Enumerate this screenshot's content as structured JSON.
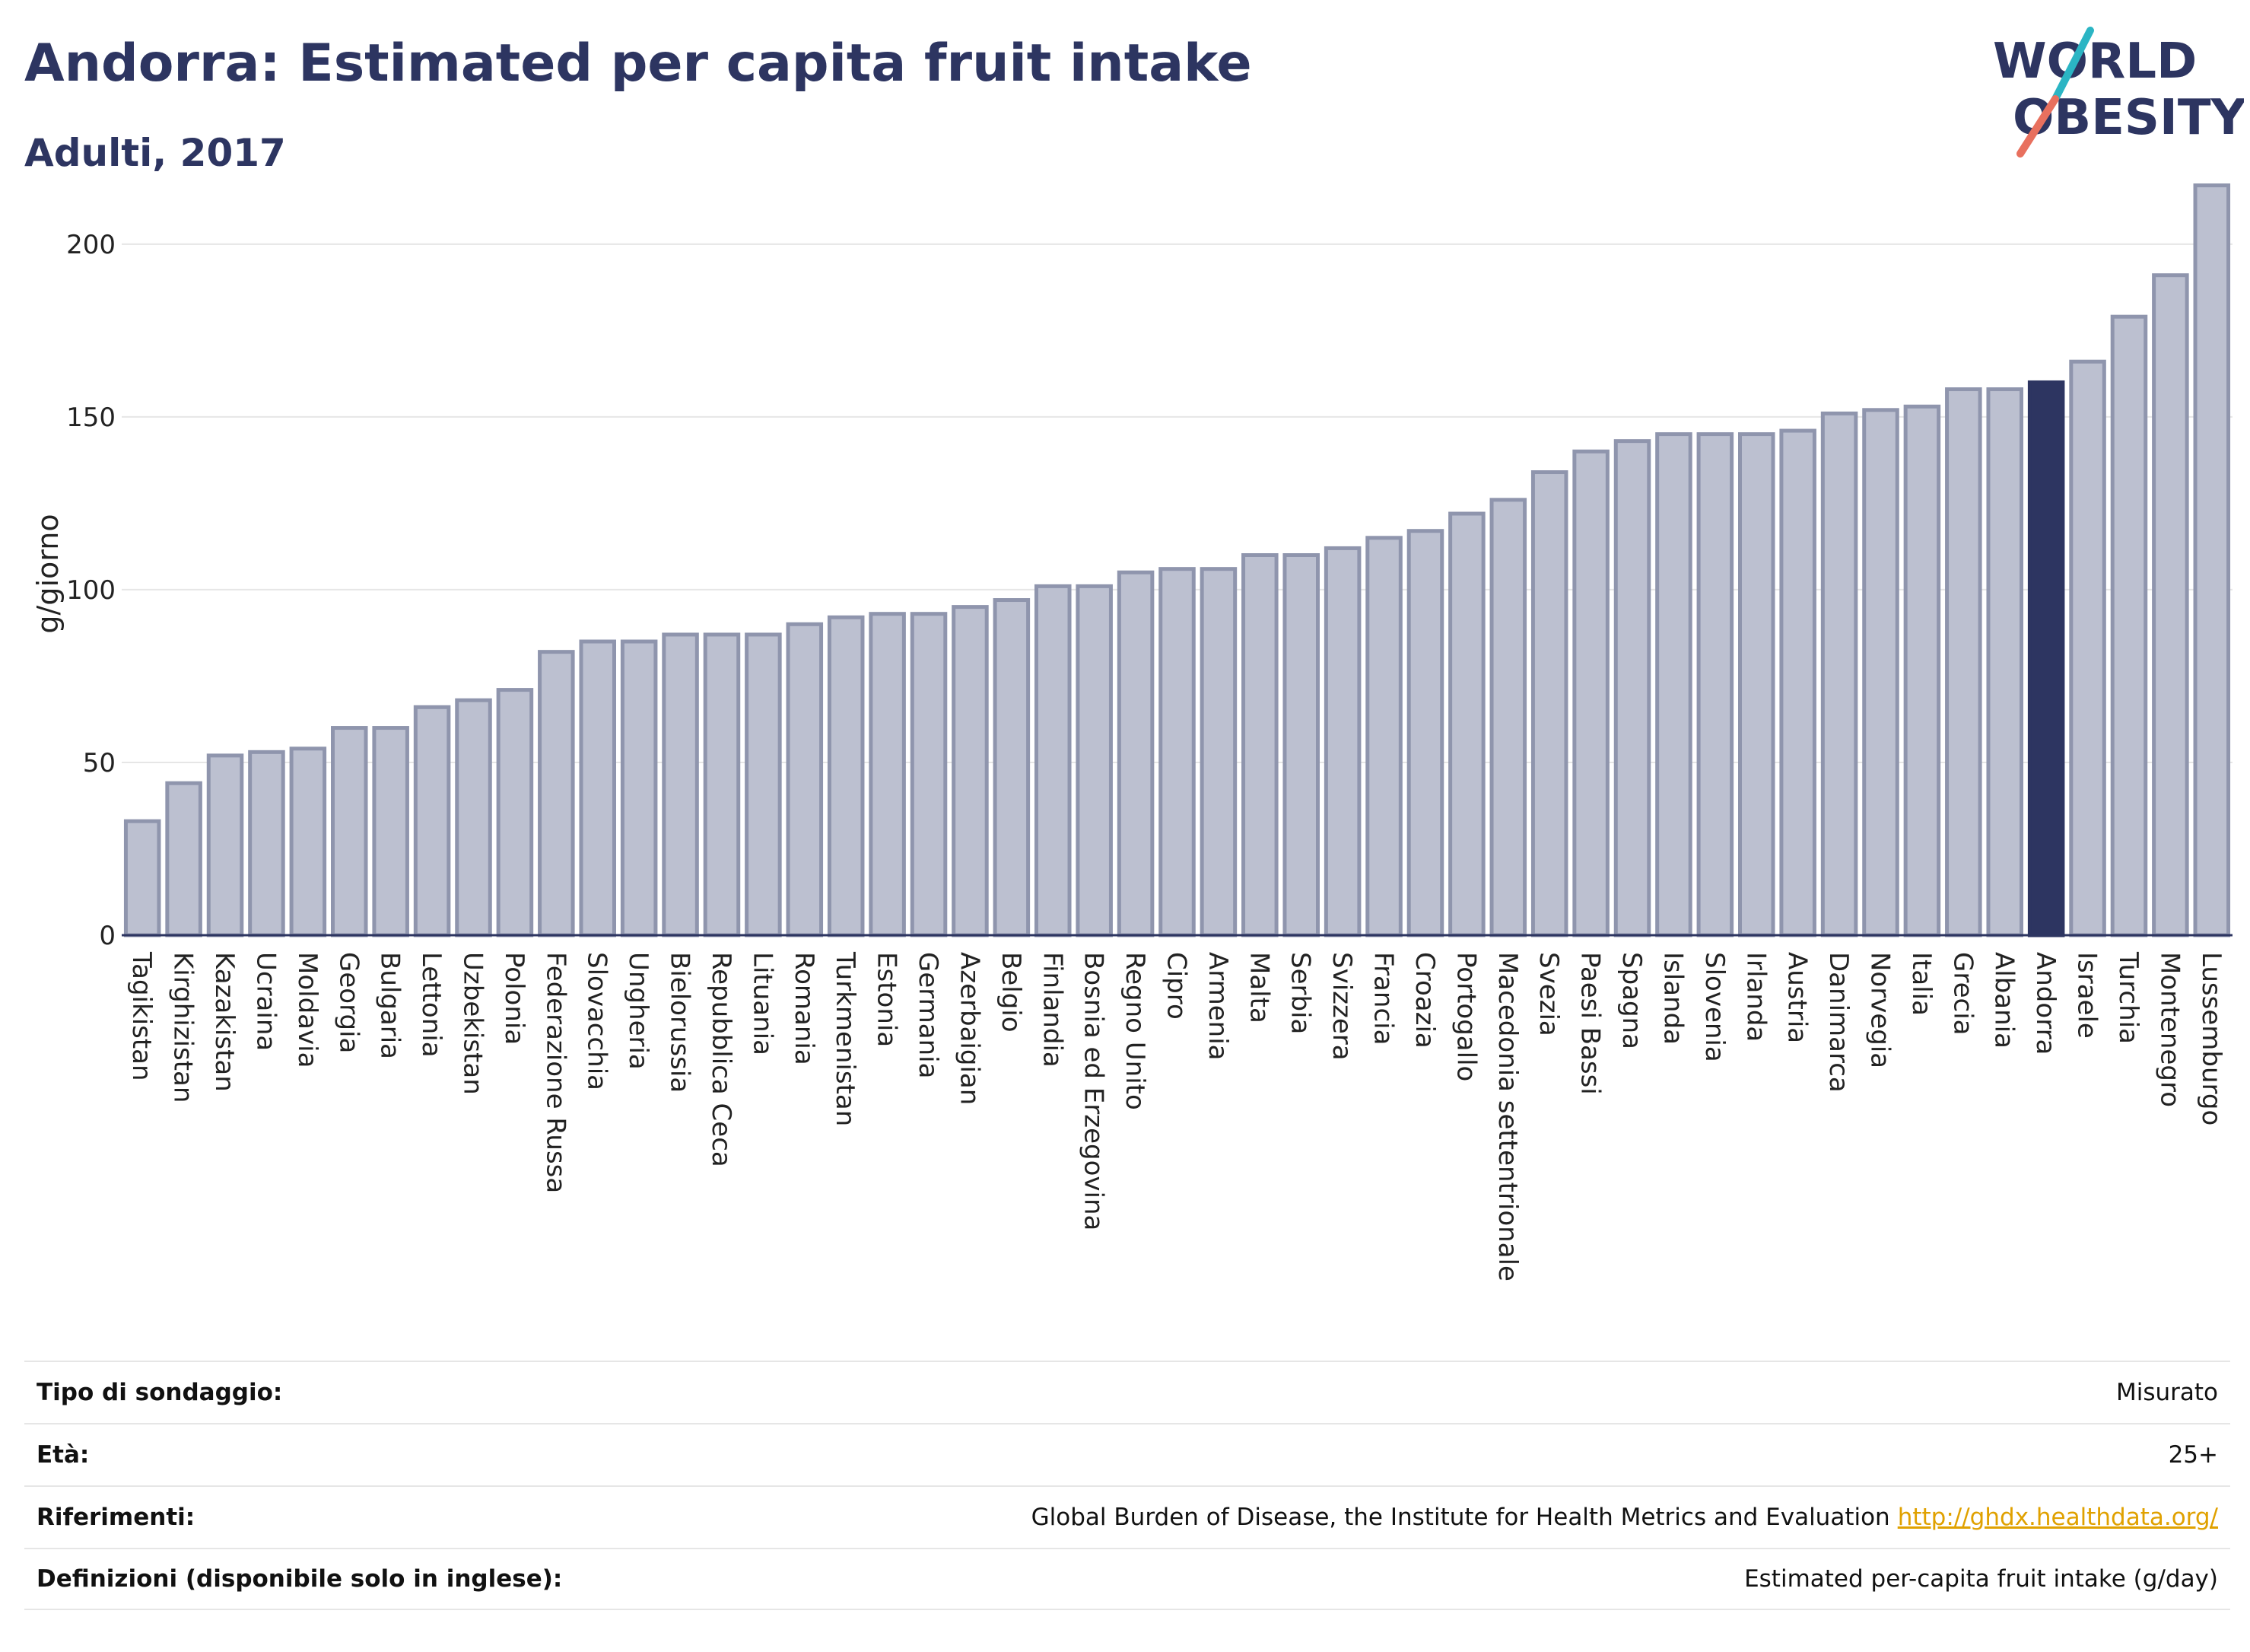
{
  "header": {
    "title": "Andorra: Estimated per capita fruit intake",
    "subtitle": "Adulti, 2017"
  },
  "logo": {
    "line1": "WORLD",
    "line2": "OBESITY",
    "slash_color_top": "#2bb5c4",
    "slash_color_bottom": "#e8705e"
  },
  "colors": {
    "bar": "#bcc0d0",
    "bar_border": "#8f95ad",
    "highlight": "#2d3561",
    "grid": "#e6e6e6"
  },
  "chart_data": {
    "type": "bar",
    "ylabel": "g/giorno",
    "ylim": [
      0,
      220
    ],
    "yticks": [
      0,
      50,
      100,
      150,
      200
    ],
    "highlight": "Andorra",
    "categories": [
      "Tagikistan",
      "Kirghizistan",
      "Kazakistan",
      "Ucraina",
      "Moldavia",
      "Georgia",
      "Bulgaria",
      "Lettonia",
      "Uzbekistan",
      "Polonia",
      "Federazione Russa",
      "Slovacchia",
      "Ungheria",
      "Bielorussia",
      "Repubblica Ceca",
      "Lituania",
      "Romania",
      "Turkmenistan",
      "Estonia",
      "Germania",
      "Azerbaigian",
      "Belgio",
      "Finlandia",
      "Bosnia ed Erzegovina",
      "Regno Unito",
      "Cipro",
      "Armenia",
      "Malta",
      "Serbia",
      "Svizzera",
      "Francia",
      "Croazia",
      "Portogallo",
      "Macedonia settentrionale",
      "Svezia",
      "Paesi Bassi",
      "Spagna",
      "Islanda",
      "Slovenia",
      "Irlanda",
      "Austria",
      "Danimarca",
      "Norvegia",
      "Italia",
      "Grecia",
      "Albania",
      "Andorra",
      "Israele",
      "Turchia",
      "Montenegro",
      "Lussemburgo"
    ],
    "values": [
      33,
      44,
      52,
      53,
      54,
      60,
      60,
      66,
      68,
      71,
      82,
      85,
      85,
      87,
      87,
      87,
      90,
      92,
      93,
      93,
      95,
      97,
      101,
      101,
      105,
      106,
      106,
      110,
      110,
      112,
      115,
      117,
      122,
      126,
      134,
      140,
      143,
      145,
      145,
      145,
      146,
      151,
      152,
      153,
      158,
      158,
      160,
      166,
      179,
      191,
      217
    ]
  },
  "info": [
    {
      "key": "Tipo di sondaggio:",
      "value": "Misurato"
    },
    {
      "key": "Età:",
      "value": "25+"
    },
    {
      "key": "Riferimenti:",
      "value": "Global Burden of Disease, the Institute for Health Metrics and Evaluation",
      "link": "http://ghdx.healthdata.org/"
    },
    {
      "key": "Definizioni (disponibile solo in inglese):",
      "value": "Estimated per-capita fruit intake (g/day)"
    }
  ]
}
